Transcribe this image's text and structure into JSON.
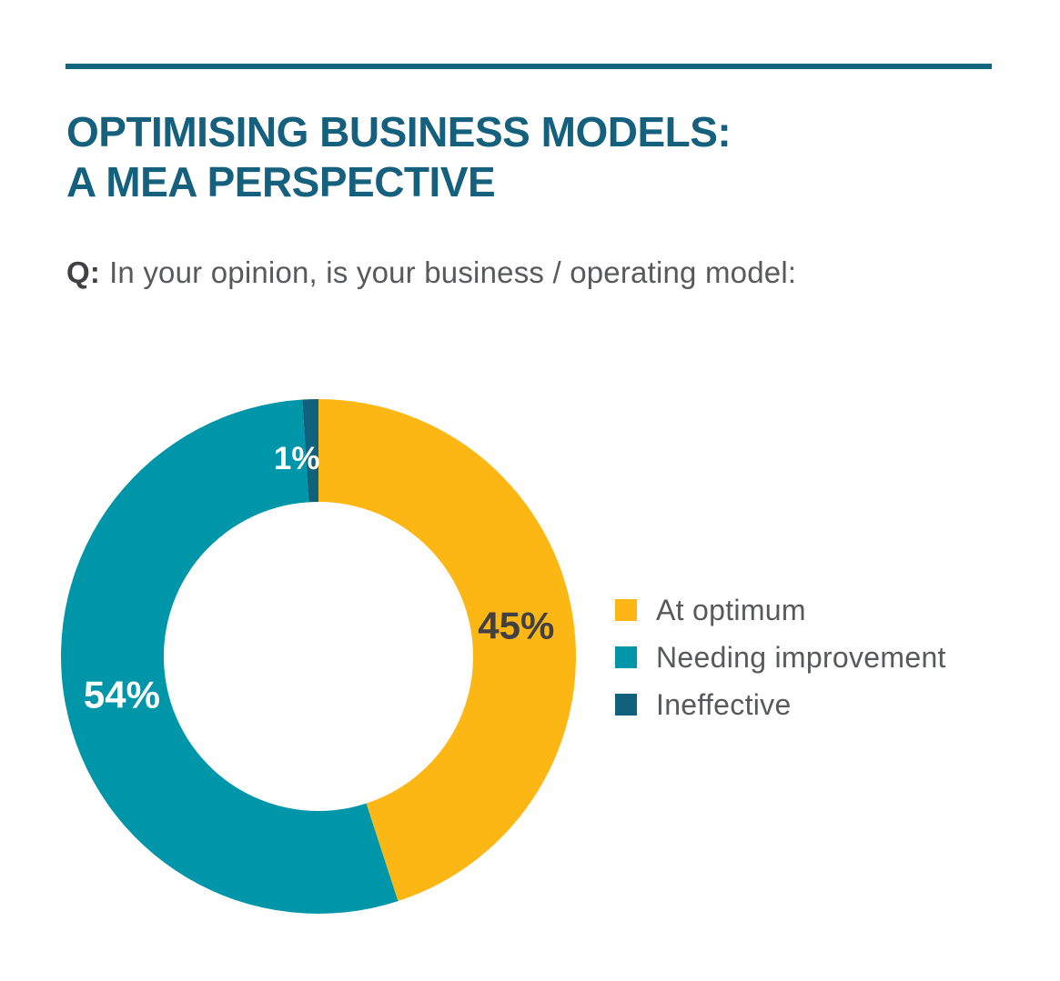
{
  "header": {
    "title_line1": "OPTIMISING BUSINESS MODELS:",
    "title_line2": "A MEA PERSPECTIVE",
    "question_prefix": "Q:",
    "question_text": "In your opinion, is your business / operating model:"
  },
  "colors": {
    "rule": "#12667E",
    "title": "#15607D",
    "question_prefix": "#414042",
    "question_text": "#58595B",
    "legend_text": "#58595B",
    "background": "#FFFFFF"
  },
  "chart_data": {
    "type": "pie",
    "subtype": "donut",
    "title": "OPTIMISING BUSINESS MODELS: A MEA PERSPECTIVE",
    "question": "Q: In your opinion, is your business / operating model:",
    "start_angle_deg": 0,
    "direction": "clockwise",
    "donut_hole_ratio": 0.6,
    "legend_position": "right",
    "segments": [
      {
        "label": "At optimum",
        "value": 45,
        "display": "45%",
        "color": "#FDB714",
        "label_color": "#414042"
      },
      {
        "label": "Needing improvement",
        "value": 54,
        "display": "54%",
        "color": "#0096A9",
        "label_color": "#FFFFFF"
      },
      {
        "label": "Ineffective",
        "value": 1,
        "display": "1%",
        "color": "#10617C",
        "label_color": "#FFFFFF"
      }
    ]
  }
}
